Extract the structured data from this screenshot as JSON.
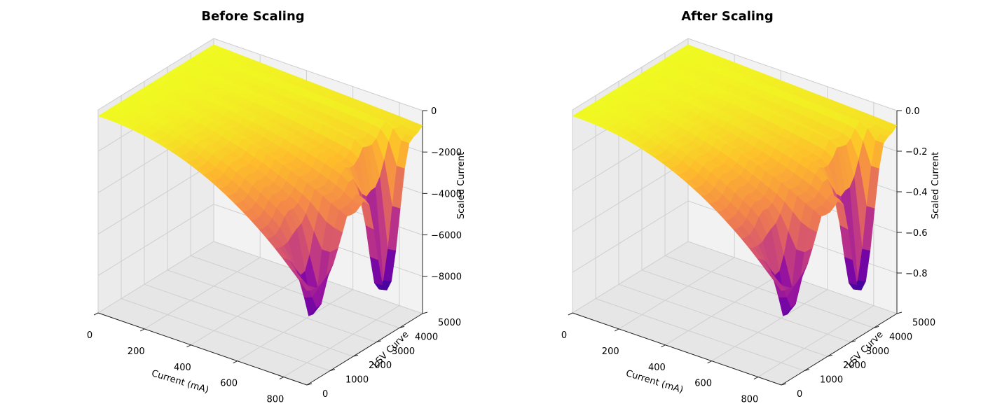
{
  "chart_data": [
    {
      "type": "surface3d",
      "title": "Before Scaling",
      "xlabel": "Current (mA)",
      "ylabel": "LSV Curve",
      "zlabel": "Scaled Current",
      "xlim": [
        0,
        900
      ],
      "ylim": [
        0,
        5000
      ],
      "zlim": [
        -9800,
        0
      ],
      "xticks": [
        0,
        200,
        400,
        600,
        800
      ],
      "yticks": [
        0,
        1000,
        2000,
        3000,
        4000,
        5000
      ],
      "zticks": [
        -8000,
        -6000,
        -4000,
        -2000,
        0
      ],
      "xtick_labels": [
        "0",
        "200",
        "400",
        "600",
        "800"
      ],
      "ytick_labels": [
        "0",
        "1000",
        "2000",
        "3000",
        "4000",
        "5000"
      ],
      "ztick_labels": [
        "−8000",
        "−6000",
        "−4000",
        "−2000",
        "0"
      ],
      "colormap": "plasma",
      "surface_min": -9800,
      "surface_max": 0
    },
    {
      "type": "surface3d",
      "title": "After Scaling",
      "xlabel": "Current (mA)",
      "ylabel": "LSV Curve",
      "zlabel": "Scaled Current",
      "xlim": [
        0,
        900
      ],
      "ylim": [
        0,
        5000
      ],
      "zlim": [
        -1.0,
        0.0
      ],
      "xticks": [
        0,
        200,
        400,
        600,
        800
      ],
      "yticks": [
        0,
        1000,
        2000,
        3000,
        4000,
        5000
      ],
      "zticks": [
        -0.8,
        -0.6,
        -0.4,
        -0.2,
        0.0
      ],
      "xtick_labels": [
        "0",
        "200",
        "400",
        "600",
        "800"
      ],
      "ytick_labels": [
        "0",
        "1000",
        "2000",
        "3000",
        "4000",
        "5000"
      ],
      "ztick_labels": [
        "−0.8",
        "−0.6",
        "−0.4",
        "−0.2",
        "0.0"
      ],
      "colormap": "plasma",
      "surface_min": -1.0,
      "surface_max": 0.0
    }
  ]
}
